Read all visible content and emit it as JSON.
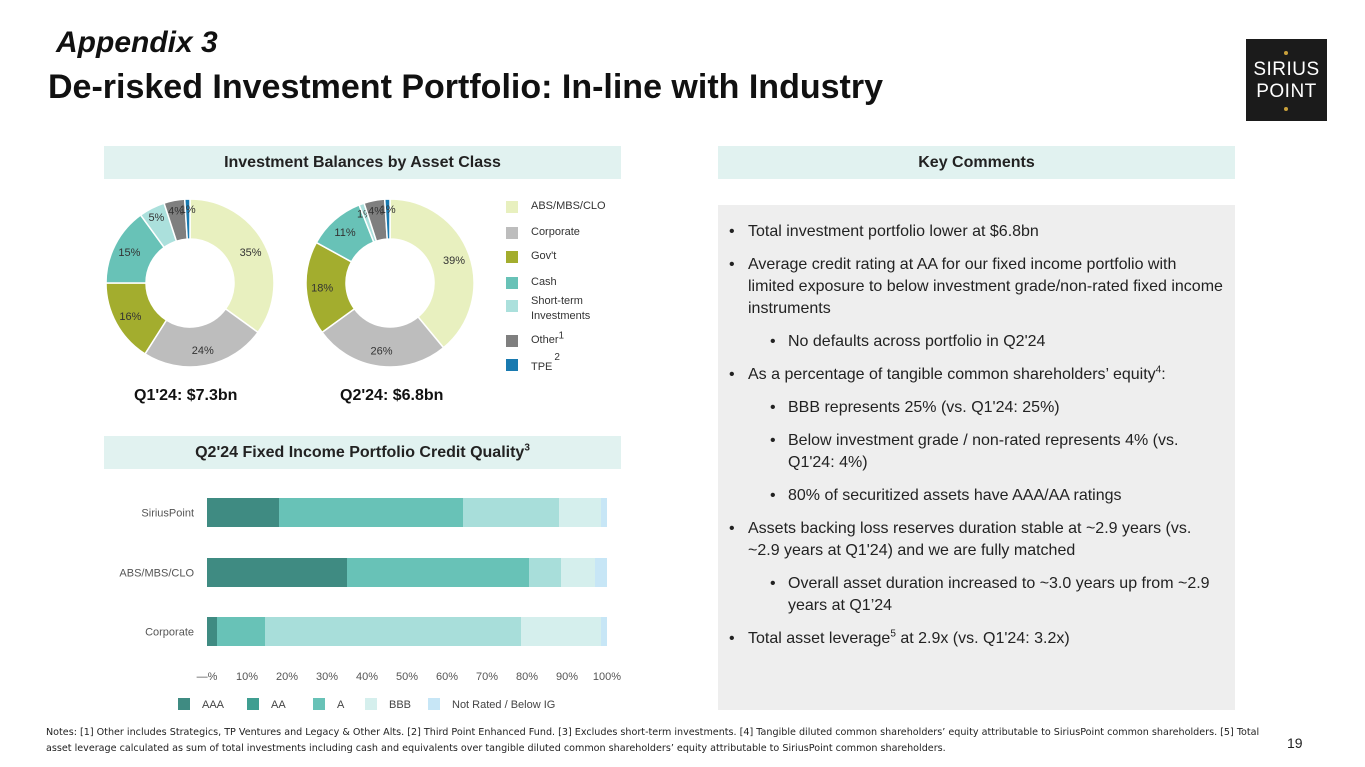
{
  "header": {
    "subtitle": "Appendix 3",
    "title": "De-risked Investment Portfolio: In-line with Industry"
  },
  "logo": {
    "line1": "SIRIUS",
    "line2": "POINT"
  },
  "balances_panel": {
    "heading": "Investment Balances by Asset Class"
  },
  "comments_panel": {
    "heading": "Key Comments"
  },
  "credit_panel": {
    "heading": "Q2'24 Fixed Income Portfolio Credit Quality",
    "heading_sup": "3"
  },
  "colors": {
    "abs": "#e8f0bf",
    "corporate": "#bdbdbd",
    "govt": "#a3ad2e",
    "cash": "#68c2b7",
    "short_term": "#abe0dc",
    "other": "#7f7f7f",
    "tpe": "#197ab0",
    "aaa": "#3f8b82",
    "aa": "#3f9e91",
    "a": "#68c2b7",
    "bbb_bar": "#a8deda",
    "bbb": "#d5efed",
    "nr": "#c7e6f6"
  },
  "donut_legend": [
    {
      "label": "ABS/MBS/CLO",
      "sup": "",
      "color_key": "abs"
    },
    {
      "label": "Corporate",
      "sup": "",
      "color_key": "corporate"
    },
    {
      "label": "Gov't",
      "sup": "",
      "color_key": "govt"
    },
    {
      "label": "Cash",
      "sup": "",
      "color_key": "cash"
    },
    {
      "label": "Short-term",
      "label2": "Investments",
      "sup": "",
      "color_key": "short_term"
    },
    {
      "label": "Other",
      "sup": "1",
      "color_key": "other"
    },
    {
      "label": "TPE",
      "sup": "2",
      "color_key": "tpe"
    }
  ],
  "chart_data": [
    {
      "type": "pie",
      "title": "Q1'24: $7.3bn",
      "labels": [
        "ABS/MBS/CLO",
        "Corporate",
        "Gov't",
        "Cash",
        "Short-term Investments",
        "Other",
        "TPE"
      ],
      "values": [
        35,
        24,
        16,
        15,
        5,
        4,
        1
      ],
      "value_labels": [
        "35%",
        "24%",
        "16%",
        "15%",
        "5%",
        "4%",
        "1%"
      ]
    },
    {
      "type": "pie",
      "title": "Q2'24: $6.8bn",
      "labels": [
        "ABS/MBS/CLO",
        "Corporate",
        "Gov't",
        "Cash",
        "Short-term Investments",
        "Other",
        "TPE"
      ],
      "values": [
        39,
        26,
        18,
        11,
        1,
        4,
        1
      ],
      "value_labels": [
        "39%",
        "26%",
        "18%",
        "11%",
        "1%",
        "4%",
        "1%"
      ]
    },
    {
      "type": "bar",
      "orientation": "horizontal",
      "stacked": true,
      "categories": [
        "SiriusPoint",
        "ABS/MBS/CLO",
        "Corporate"
      ],
      "series": [
        {
          "name": "AAA",
          "values": [
            18,
            35,
            2.5
          ]
        },
        {
          "name": "AA",
          "values": [
            0,
            0,
            0
          ]
        },
        {
          "name": "A",
          "values": [
            46,
            45.5,
            12
          ]
        },
        {
          "name": "BBB",
          "values": [
            24,
            8,
            64
          ]
        },
        {
          "name": "BBB",
          "values": [
            10.5,
            8.5,
            20
          ]
        },
        {
          "name": "Not Rated / Below IG",
          "values": [
            1.5,
            3,
            1.5
          ]
        }
      ],
      "xlim": [
        0,
        100
      ],
      "xticks": [
        "—%",
        "10%",
        "20%",
        "30%",
        "40%",
        "50%",
        "60%",
        "70%",
        "80%",
        "90%",
        "100%"
      ],
      "legend_position": "bottom"
    }
  ],
  "credit_legend": [
    {
      "label": "AAA",
      "color_key": "aaa"
    },
    {
      "label": "AA",
      "color_key": "aa"
    },
    {
      "label": "A",
      "color_key": "a"
    },
    {
      "label": "BBB",
      "color_key": "bbb"
    },
    {
      "label": "Not Rated / Below IG",
      "color_key": "nr"
    }
  ],
  "comments": [
    {
      "level": 1,
      "text": "Total investment portfolio lower at $6.8bn"
    },
    {
      "level": 1,
      "text": "Average credit rating at AA for our fixed income portfolio with limited exposure to below investment grade/non-rated fixed income instruments"
    },
    {
      "level": 2,
      "text": "No defaults across portfolio in Q2'24"
    },
    {
      "level": 1,
      "text": "As a percentage of tangible common shareholders’ equity",
      "sup": "4",
      "after": ":"
    },
    {
      "level": 2,
      "text": "BBB represents 25% (vs. Q1'24: 25%)"
    },
    {
      "level": 2,
      "text": "Below investment grade / non-rated represents 4% (vs. Q1'24: 4%)"
    },
    {
      "level": 2,
      "text": "80% of securitized assets have AAA/AA ratings"
    },
    {
      "level": 1,
      "text": "Assets backing loss reserves duration stable at ~2.9 years (vs. ~2.9 years at Q1'24) and we are fully matched"
    },
    {
      "level": 2,
      "text": "Overall asset duration increased to ~3.0 years up from ~2.9 years at Q1’24"
    },
    {
      "level": 1,
      "text": "Total asset leverage",
      "sup": "5",
      "after": " at 2.9x (vs. Q1'24: 3.2x)"
    }
  ],
  "notes": "Notes: [1] Other includes Strategics, TP Ventures and Legacy & Other Alts. [2] Third Point Enhanced Fund. [3] Excludes short-term investments. [4] Tangible diluted common shareholders’ equity attributable to SiriusPoint common shareholders. [5] Total asset leverage calculated as sum of total investments including cash and equivalents over tangible diluted common shareholders’ equity attributable to SiriusPoint common shareholders.",
  "page_number": "19"
}
